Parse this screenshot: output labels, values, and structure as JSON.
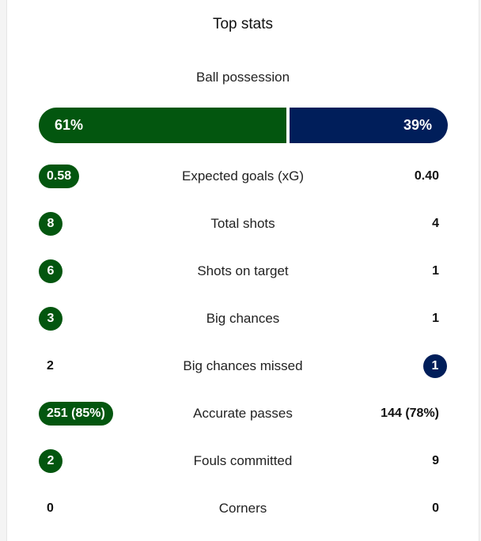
{
  "title": "Top stats",
  "colors": {
    "home": "#03560f",
    "away": "#001e5a"
  },
  "possession": {
    "label": "Ball possession",
    "home": "61%",
    "away": "39%",
    "home_fraction": 0.61
  },
  "stats": [
    {
      "label": "Expected goals (xG)",
      "home": "0.58",
      "away": "0.40",
      "highlight": "home"
    },
    {
      "label": "Total shots",
      "home": "8",
      "away": "4",
      "highlight": "home"
    },
    {
      "label": "Shots on target",
      "home": "6",
      "away": "1",
      "highlight": "home"
    },
    {
      "label": "Big chances",
      "home": "3",
      "away": "1",
      "highlight": "home"
    },
    {
      "label": "Big chances missed",
      "home": "2",
      "away": "1",
      "highlight": "away"
    },
    {
      "label": "Accurate passes",
      "home": "251 (85%)",
      "away": "144 (78%)",
      "highlight": "home"
    },
    {
      "label": "Fouls committed",
      "home": "2",
      "away": "9",
      "highlight": "home"
    },
    {
      "label": "Corners",
      "home": "0",
      "away": "0",
      "highlight": "none"
    }
  ]
}
